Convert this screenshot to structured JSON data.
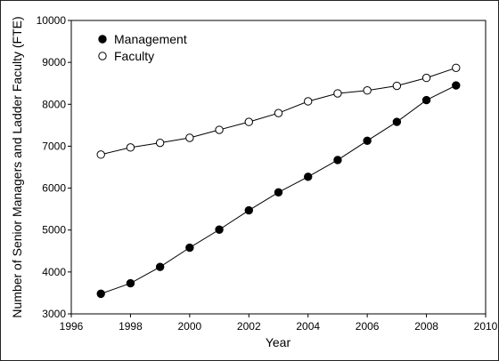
{
  "chart_data": {
    "type": "line",
    "title": "",
    "xlabel": "Year",
    "ylabel": "Number of Senior Managers and Ladder Faculty (FTE)",
    "xlim": [
      1996,
      2010
    ],
    "ylim": [
      3000,
      10000
    ],
    "x_ticks": [
      1996,
      1998,
      2000,
      2002,
      2004,
      2006,
      2008,
      2010
    ],
    "y_ticks": [
      3000,
      4000,
      5000,
      6000,
      7000,
      8000,
      9000,
      10000
    ],
    "grid": false,
    "legend_position": "top-left",
    "x": [
      1997,
      1998,
      1999,
      2000,
      2001,
      2002,
      2003,
      2004,
      2005,
      2006,
      2007,
      2008,
      2009
    ],
    "series": [
      {
        "name": "Management",
        "marker": "filled-circle",
        "color": "#000000",
        "values": [
          3480,
          3730,
          4120,
          4580,
          5010,
          5470,
          5900,
          6270,
          6670,
          7130,
          7580,
          8100,
          8450
        ]
      },
      {
        "name": "Faculty",
        "marker": "open-circle",
        "color": "#000000",
        "values": [
          6800,
          6970,
          7080,
          7200,
          7390,
          7580,
          7790,
          8070,
          8260,
          8330,
          8440,
          8630,
          8870
        ]
      }
    ]
  }
}
